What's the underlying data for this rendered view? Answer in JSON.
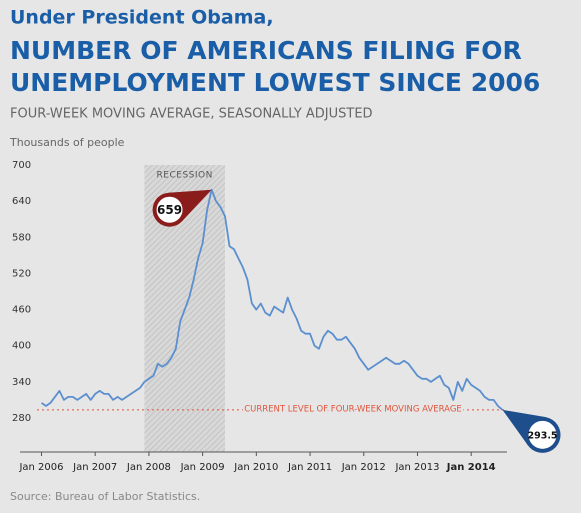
{
  "chart_data": {
    "type": "line",
    "pretitle": "Under President Obama,",
    "title_lines": [
      "NUMBER OF AMERICANS FILING FOR",
      "UNEMPLOYMENT LOWEST SINCE 2006"
    ],
    "subtitle": "FOUR-WEEK MOVING AVERAGE, SEASONALLY ADJUSTED",
    "y_label": "Thousands of people",
    "source": "Source: Bureau of Labor Statistics.",
    "color": "#5b8fcf",
    "x": [
      "2006-01",
      "2006-02",
      "2006-03",
      "2006-04",
      "2006-05",
      "2006-06",
      "2006-07",
      "2006-08",
      "2006-09",
      "2006-10",
      "2006-11",
      "2006-12",
      "2007-01",
      "2007-02",
      "2007-03",
      "2007-04",
      "2007-05",
      "2007-06",
      "2007-07",
      "2007-08",
      "2007-09",
      "2007-10",
      "2007-11",
      "2007-12",
      "2008-01",
      "2008-02",
      "2008-03",
      "2008-04",
      "2008-05",
      "2008-06",
      "2008-07",
      "2008-08",
      "2008-09",
      "2008-10",
      "2008-11",
      "2008-12",
      "2009-01",
      "2009-02",
      "2009-03",
      "2009-04",
      "2009-05",
      "2009-06",
      "2009-07",
      "2009-08",
      "2009-09",
      "2009-10",
      "2009-11",
      "2009-12",
      "2010-01",
      "2010-02",
      "2010-03",
      "2010-04",
      "2010-05",
      "2010-06",
      "2010-07",
      "2010-08",
      "2010-09",
      "2010-10",
      "2010-11",
      "2010-12",
      "2011-01",
      "2011-02",
      "2011-03",
      "2011-04",
      "2011-05",
      "2011-06",
      "2011-07",
      "2011-08",
      "2011-09",
      "2011-10",
      "2011-11",
      "2011-12",
      "2012-01",
      "2012-02",
      "2012-03",
      "2012-04",
      "2012-05",
      "2012-06",
      "2012-07",
      "2012-08",
      "2012-09",
      "2012-10",
      "2012-11",
      "2012-12",
      "2013-01",
      "2013-02",
      "2013-03",
      "2013-04",
      "2013-05",
      "2013-06",
      "2013-07",
      "2013-08",
      "2013-09",
      "2013-10",
      "2013-11",
      "2013-12",
      "2014-01",
      "2014-02",
      "2014-03",
      "2014-04",
      "2014-05",
      "2014-06",
      "2014-07",
      "2014-08"
    ],
    "values": [
      305,
      300,
      305,
      315,
      325,
      310,
      315,
      315,
      310,
      315,
      320,
      310,
      320,
      325,
      320,
      320,
      310,
      315,
      310,
      315,
      320,
      325,
      330,
      340,
      345,
      350,
      370,
      365,
      370,
      380,
      395,
      440,
      460,
      480,
      510,
      545,
      570,
      625,
      659,
      640,
      630,
      615,
      565,
      560,
      545,
      530,
      510,
      470,
      460,
      470,
      455,
      450,
      465,
      460,
      455,
      480,
      460,
      445,
      425,
      420,
      420,
      400,
      395,
      415,
      425,
      420,
      410,
      410,
      415,
      405,
      395,
      380,
      370,
      360,
      365,
      370,
      375,
      380,
      375,
      370,
      370,
      375,
      370,
      360,
      350,
      345,
      345,
      340,
      345,
      350,
      335,
      330,
      310,
      340,
      325,
      345,
      335,
      330,
      325,
      315,
      310,
      310,
      300,
      293.5
    ],
    "value_labels": [
      null,
      null,
      null,
      null,
      null,
      null,
      null,
      null,
      null,
      null,
      null,
      null,
      null,
      null,
      null,
      null,
      null,
      null,
      null,
      null,
      null,
      null,
      null,
      null,
      null,
      null,
      null,
      null,
      null,
      null,
      null,
      null,
      null,
      null,
      null,
      null,
      null,
      null,
      "659",
      null,
      null,
      null,
      null,
      null,
      null,
      null,
      null,
      null,
      null,
      null,
      null,
      null,
      null,
      null,
      null,
      null,
      null,
      null,
      null,
      null,
      null,
      null,
      null,
      null,
      null,
      null,
      null,
      null,
      null,
      null,
      null,
      null,
      null,
      null,
      null,
      null,
      null,
      null,
      null,
      null,
      null,
      null,
      null,
      null,
      null,
      null,
      null,
      null,
      null,
      null,
      null,
      null,
      null,
      null,
      null,
      null,
      null,
      null,
      null,
      null,
      null,
      null,
      null,
      "293.5"
    ],
    "recession": {
      "label": "RECESSION",
      "start": "2007-12",
      "end": "2009-06"
    },
    "reference_line": {
      "value": 293.5,
      "label": "CURRENT LEVEL OF FOUR-WEEK MOVING AVERAGE",
      "color": "#e0553c"
    },
    "xlim": [
      "2005-12",
      "2014-09"
    ],
    "xticks": [
      {
        "value": "2006-01",
        "label": "Jan 2006"
      },
      {
        "value": "2007-01",
        "label": "Jan 2007"
      },
      {
        "value": "2008-01",
        "label": "Jan 2008"
      },
      {
        "value": "2009-01",
        "label": "Jan 2009"
      },
      {
        "value": "2010-01",
        "label": "Jan 2010"
      },
      {
        "value": "2011-01",
        "label": "Jan 2011"
      },
      {
        "value": "2012-01",
        "label": "Jan 2012"
      },
      {
        "value": "2013-01",
        "label": "Jan 2013"
      },
      {
        "value": "2014-01",
        "label": "Jan 2014"
      }
    ],
    "ylim": [
      280,
      700
    ],
    "yticks": [
      280,
      340,
      400,
      460,
      520,
      580,
      640,
      700
    ]
  }
}
